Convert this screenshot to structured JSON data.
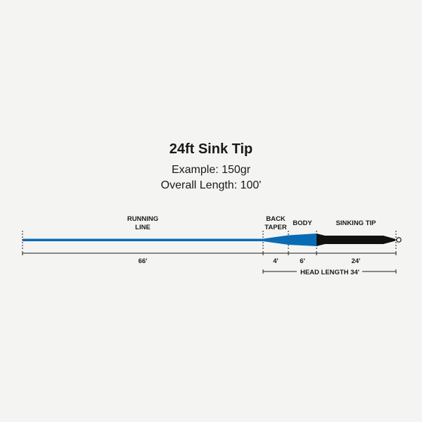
{
  "title": "24ft Sink Tip",
  "example": "Example: 150gr",
  "overall_length": "Overall Length: 100'",
  "sections": {
    "running_line": {
      "label_1": "RUNNING",
      "label_2": "LINE",
      "length": "66'",
      "color": "#0a6bb5"
    },
    "back_taper": {
      "label_1": "BACK",
      "label_2": "TAPER",
      "length": "4'",
      "color": "#0a6bb5"
    },
    "body": {
      "label": "BODY",
      "length": "6'",
      "color": "#0a6bb5"
    },
    "sinking_tip": {
      "label": "SINKING TIP",
      "length": "24'",
      "color": "#111111"
    }
  },
  "head_length": "HEAD LENGTH 34'"
}
